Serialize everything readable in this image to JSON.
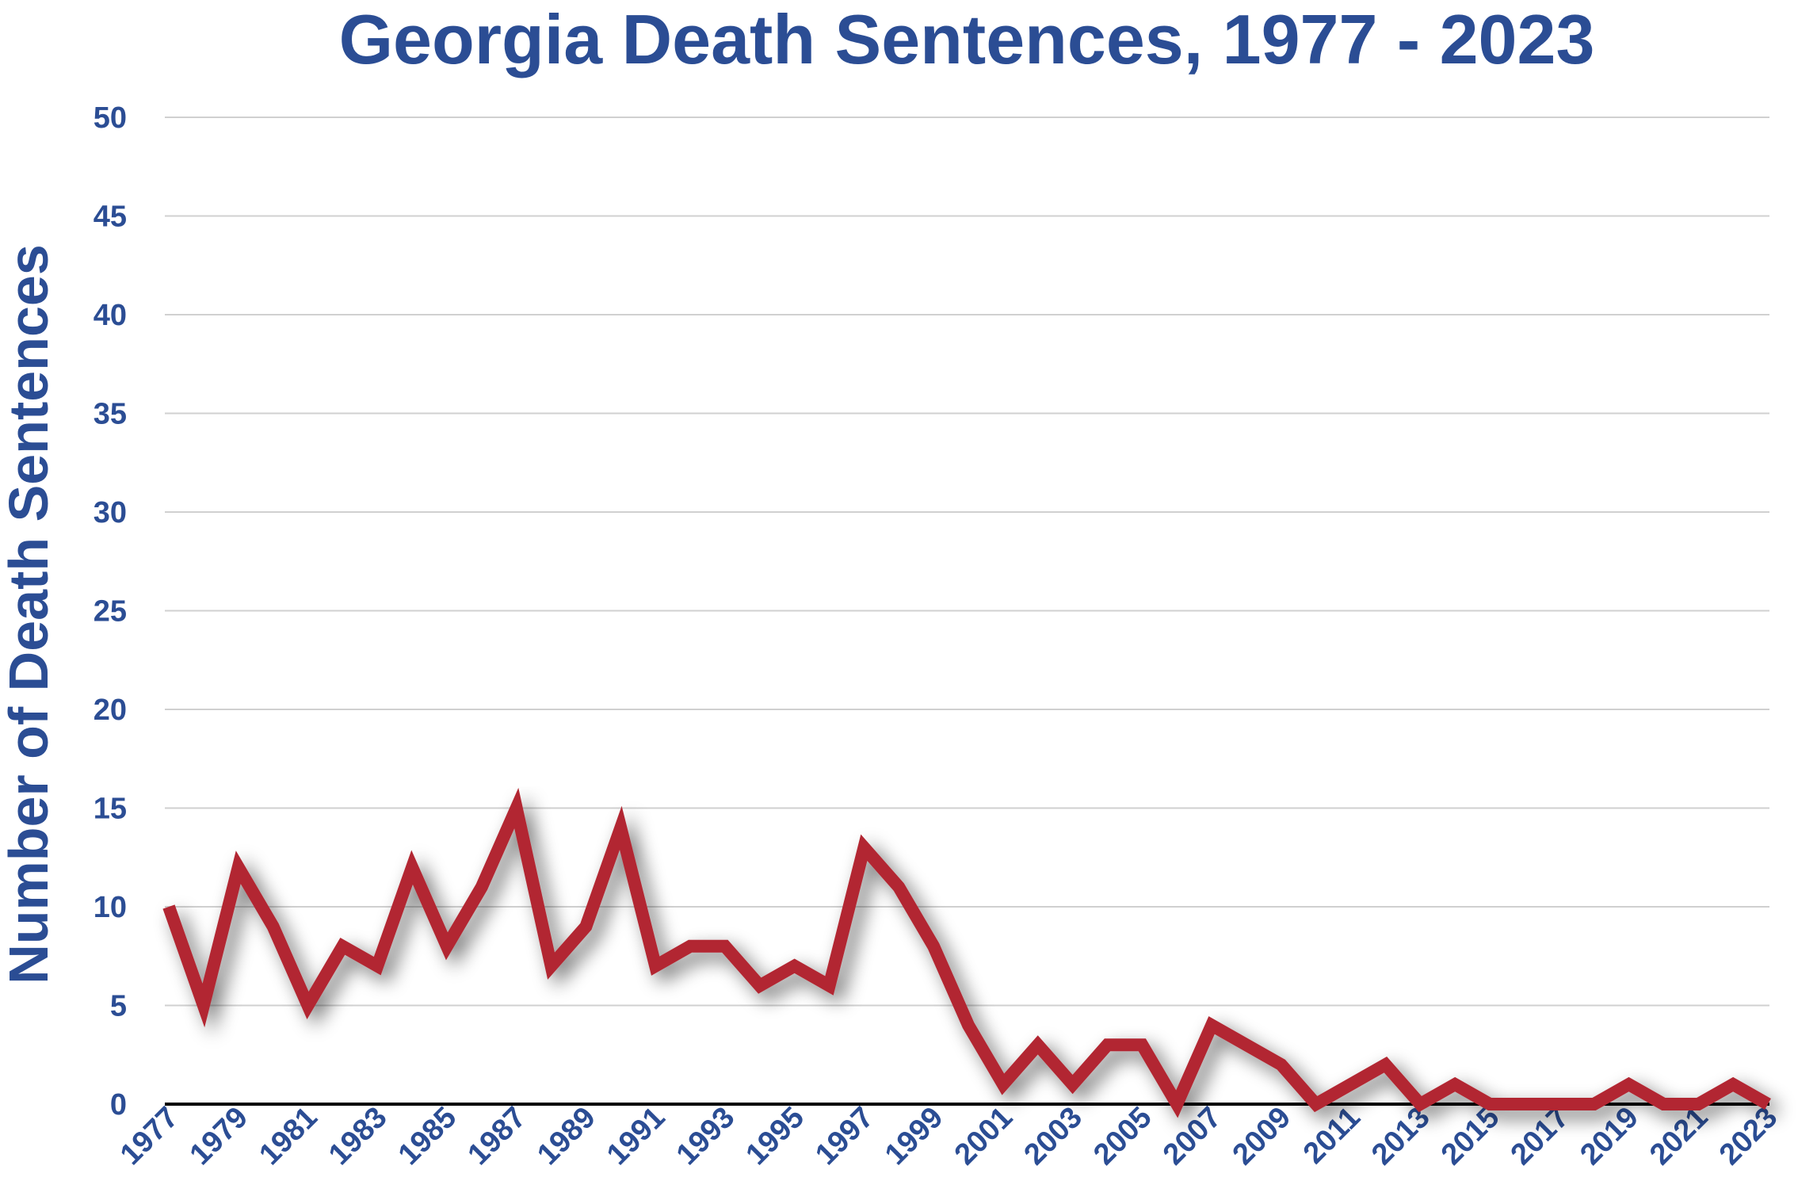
{
  "chart_data": {
    "type": "line",
    "title": "Georgia Death Sentences, 1977 - 2023",
    "xlabel": "",
    "ylabel": "Number of Death Sentences",
    "ylim": [
      0,
      50
    ],
    "yticks": [
      0,
      5,
      10,
      15,
      20,
      25,
      30,
      35,
      40,
      45,
      50
    ],
    "grid": true,
    "x": [
      1977,
      1978,
      1979,
      1980,
      1981,
      1982,
      1983,
      1984,
      1985,
      1986,
      1987,
      1988,
      1989,
      1990,
      1991,
      1992,
      1993,
      1994,
      1995,
      1996,
      1997,
      1998,
      1999,
      2000,
      2001,
      2002,
      2003,
      2004,
      2005,
      2006,
      2007,
      2008,
      2009,
      2010,
      2011,
      2012,
      2013,
      2014,
      2015,
      2016,
      2017,
      2018,
      2019,
      2020,
      2021,
      2022,
      2023
    ],
    "xtick_labels": [
      "1977",
      "1979",
      "1981",
      "1983",
      "1985",
      "1987",
      "1989",
      "1991",
      "1993",
      "1995",
      "1997",
      "1999",
      "2001",
      "2003",
      "2005",
      "2007",
      "2009",
      "2011",
      "2013",
      "2015",
      "2017",
      "2019",
      "2021",
      "2023"
    ],
    "series": [
      {
        "name": "Death Sentences",
        "color": "#b22730",
        "values": [
          10,
          5,
          12,
          9,
          5,
          8,
          7,
          12,
          8,
          11,
          15,
          7,
          9,
          14,
          7,
          8,
          8,
          6,
          7,
          6,
          13,
          11,
          8,
          4,
          1,
          3,
          1,
          3,
          3,
          0,
          4,
          3,
          2,
          0,
          1,
          2,
          0,
          1,
          0,
          0,
          0,
          0,
          1,
          0,
          0,
          1,
          0
        ]
      }
    ],
    "colors": {
      "text": "#2b4d94",
      "line": "#b22730"
    }
  }
}
